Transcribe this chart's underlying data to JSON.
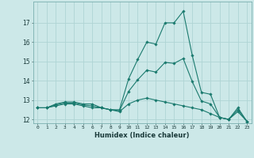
{
  "xlabel": "Humidex (Indice chaleur)",
  "x": [
    0,
    1,
    2,
    3,
    4,
    5,
    6,
    7,
    8,
    9,
    10,
    11,
    12,
    13,
    14,
    15,
    16,
    17,
    18,
    19,
    20,
    21,
    22,
    23
  ],
  "line_max": [
    12.6,
    12.6,
    12.8,
    12.9,
    12.9,
    12.8,
    12.8,
    12.6,
    12.5,
    12.5,
    14.1,
    15.1,
    16.0,
    15.9,
    17.0,
    17.0,
    17.6,
    15.3,
    13.4,
    13.3,
    12.1,
    12.0,
    12.6,
    11.9
  ],
  "line_min": [
    12.6,
    12.6,
    12.7,
    12.8,
    12.8,
    12.7,
    12.6,
    12.6,
    12.5,
    12.4,
    12.8,
    13.0,
    13.1,
    13.0,
    12.9,
    12.8,
    12.7,
    12.6,
    12.5,
    12.3,
    12.1,
    12.0,
    12.4,
    11.9
  ],
  "line_avg": [
    12.6,
    12.6,
    12.75,
    12.85,
    12.85,
    12.75,
    12.7,
    12.6,
    12.5,
    12.45,
    13.45,
    14.05,
    14.55,
    14.45,
    14.95,
    14.9,
    15.15,
    13.95,
    12.95,
    12.8,
    12.1,
    12.0,
    12.5,
    11.9
  ],
  "ylim": [
    11.8,
    18.1
  ],
  "yticks": [
    12,
    13,
    14,
    15,
    16,
    17
  ],
  "bg_color": "#cce8e8",
  "grid_color": "#afd4d4",
  "line_color": "#1a7a6e",
  "markersize": 1.8,
  "linewidth": 0.8
}
